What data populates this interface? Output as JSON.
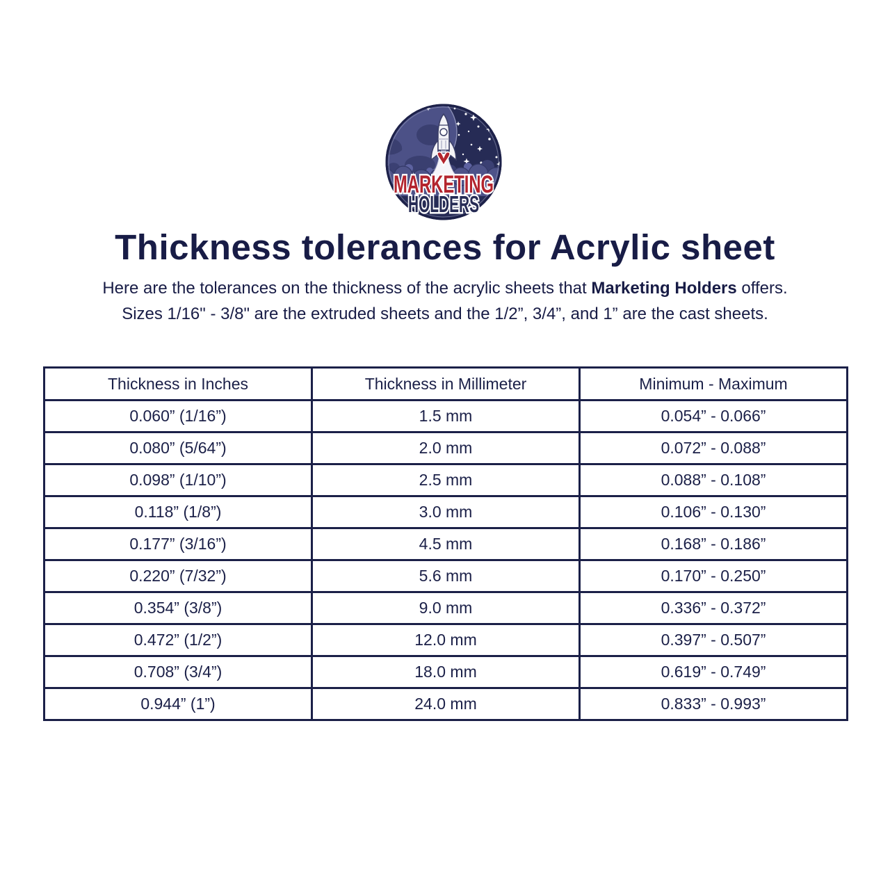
{
  "logo": {
    "line1": "MARKETING",
    "line2": "HOLDERS"
  },
  "title": "Thickness tolerances for Acrylic sheet",
  "intro": {
    "line1_prefix": "Here are the tolerances on the thickness of the acrylic sheets that ",
    "line1_bold": "Marketing Holders",
    "line1_suffix": " offers.",
    "line2": "Sizes 1/16\" - 3/8\" are the extruded sheets and the 1/2”, 3/4”, and 1” are the cast sheets."
  },
  "table": {
    "headers": [
      "Thickness in Inches",
      "Thickness in Millimeter",
      "Minimum - Maximum"
    ],
    "rows": [
      [
        "0.060” (1/16”)",
        "1.5 mm",
        "0.054” - 0.066”"
      ],
      [
        "0.080” (5/64”)",
        "2.0 mm",
        "0.072” - 0.088”"
      ],
      [
        "0.098” (1/10”)",
        "2.5 mm",
        "0.088” - 0.108”"
      ],
      [
        "0.118” (1/8”)",
        "3.0 mm",
        "0.106” - 0.130”"
      ],
      [
        "0.177” (3/16”)",
        "4.5 mm",
        "0.168” - 0.186”"
      ],
      [
        "0.220” (7/32”)",
        "5.6 mm",
        "0.170” - 0.250”"
      ],
      [
        "0.354” (3/8”)",
        "9.0 mm",
        "0.336” - 0.372”"
      ],
      [
        "0.472” (1/2”)",
        "12.0 mm",
        "0.397” - 0.507”"
      ],
      [
        "0.708” (3/4”)",
        "18.0 mm",
        "0.619” - 0.749”"
      ],
      [
        "0.944” (1”)",
        "24.0 mm",
        "0.833” - 0.993”"
      ]
    ]
  },
  "colors": {
    "text_navy": "#1b2048",
    "title_navy": "#181c46",
    "border_navy": "#1b2048",
    "logo_red": "#b3242e",
    "logo_navy": "#272c55",
    "logo_sky": "#262b55",
    "logo_planet": "#4c5187",
    "logo_cloud": "#4e5389",
    "background": "#ffffff"
  }
}
